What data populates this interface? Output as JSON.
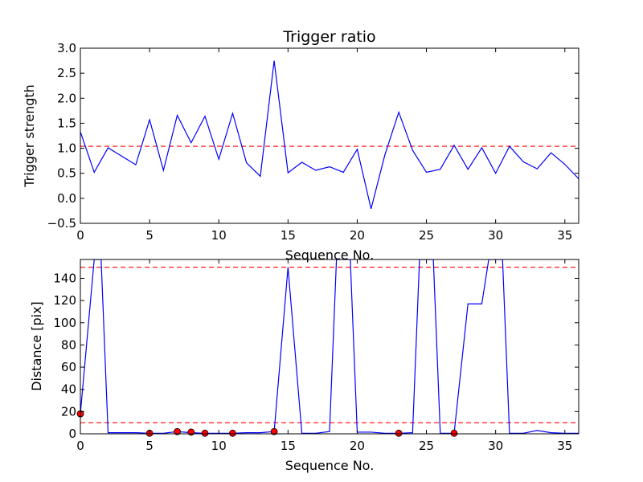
{
  "chart_data": [
    {
      "type": "line",
      "title": "Trigger ratio",
      "xlabel": "Sequence No.",
      "ylabel": "Trigger strength",
      "xlim": [
        0,
        36
      ],
      "ylim": [
        -0.5,
        3.0
      ],
      "xticks": [
        "0",
        "5",
        "10",
        "15",
        "20",
        "25",
        "30",
        "35"
      ],
      "yticks": [
        "−0.5",
        "0.0",
        "0.5",
        "1.0",
        "1.5",
        "2.0",
        "2.5",
        "3.0"
      ],
      "grid": false,
      "series": [
        {
          "style": "solid",
          "color": "#0000ff",
          "x": [
            0,
            1,
            2,
            3,
            4,
            5,
            6,
            7,
            8,
            9,
            10,
            11,
            12,
            13,
            14,
            15,
            16,
            17,
            18,
            19,
            20,
            21,
            22,
            23,
            24,
            25,
            26,
            27,
            28,
            29,
            30,
            31,
            32,
            33,
            34,
            35,
            36
          ],
          "y": [
            1.33,
            0.52,
            1.01,
            0.84,
            0.67,
            1.57,
            0.56,
            1.66,
            1.11,
            1.64,
            0.78,
            1.7,
            0.71,
            0.44,
            2.75,
            0.51,
            0.72,
            0.56,
            0.63,
            0.52,
            0.98,
            -0.21,
            0.87,
            1.72,
            0.96,
            0.52,
            0.58,
            1.06,
            0.58,
            1.01,
            0.5,
            1.04,
            0.73,
            0.59,
            0.91,
            0.68,
            0.39
          ]
        }
      ],
      "reference_lines": [
        {
          "y": 1.04,
          "style": "dashed",
          "color": "#ff0000"
        }
      ]
    },
    {
      "type": "line",
      "title": "",
      "xlabel": "Sequence No.",
      "ylabel": "Distance [pix]",
      "xlim": [
        0,
        36
      ],
      "ylim": [
        0,
        157
      ],
      "xticks": [
        "0",
        "5",
        "10",
        "15",
        "20",
        "25",
        "30",
        "35"
      ],
      "yticks": [
        "0",
        "20",
        "40",
        "60",
        "80",
        "100",
        "120",
        "140"
      ],
      "grid": false,
      "series": [
        {
          "style": "solid",
          "color": "#0000ff",
          "x": [
            0,
            1,
            1.5,
            2,
            3,
            4,
            5,
            6,
            7,
            8,
            9,
            10,
            11,
            12,
            13,
            14,
            15,
            16,
            17,
            18,
            18.5,
            19,
            19.5,
            20,
            21,
            22,
            23,
            24,
            24.5,
            25,
            25.5,
            26,
            27,
            28,
            29,
            29.5,
            30,
            30.5,
            31,
            32,
            33,
            34,
            35,
            36
          ],
          "y": [
            18,
            157,
            157,
            1,
            1,
            1,
            0.5,
            0.5,
            2,
            1,
            0.5,
            0.5,
            0.5,
            1,
            1,
            2,
            150,
            0.5,
            0.5,
            2,
            157,
            157,
            157,
            1.5,
            1.5,
            0.5,
            0.5,
            1,
            157,
            157,
            157,
            0.5,
            0.5,
            117,
            117,
            157,
            157,
            157,
            0.5,
            0.5,
            3,
            1,
            0.5,
            0.5
          ]
        },
        {
          "style": "markers",
          "color": "#ff0000",
          "x": [
            0,
            5,
            7,
            8,
            9,
            11,
            14,
            23,
            27
          ],
          "y": [
            18,
            0.5,
            2,
            1.5,
            0.5,
            0.5,
            2,
            0.5,
            0.5
          ]
        }
      ],
      "reference_lines": [
        {
          "y": 150,
          "style": "dashed",
          "color": "#ff0000"
        },
        {
          "y": 10,
          "style": "dashed",
          "color": "#ff0000"
        }
      ]
    }
  ]
}
